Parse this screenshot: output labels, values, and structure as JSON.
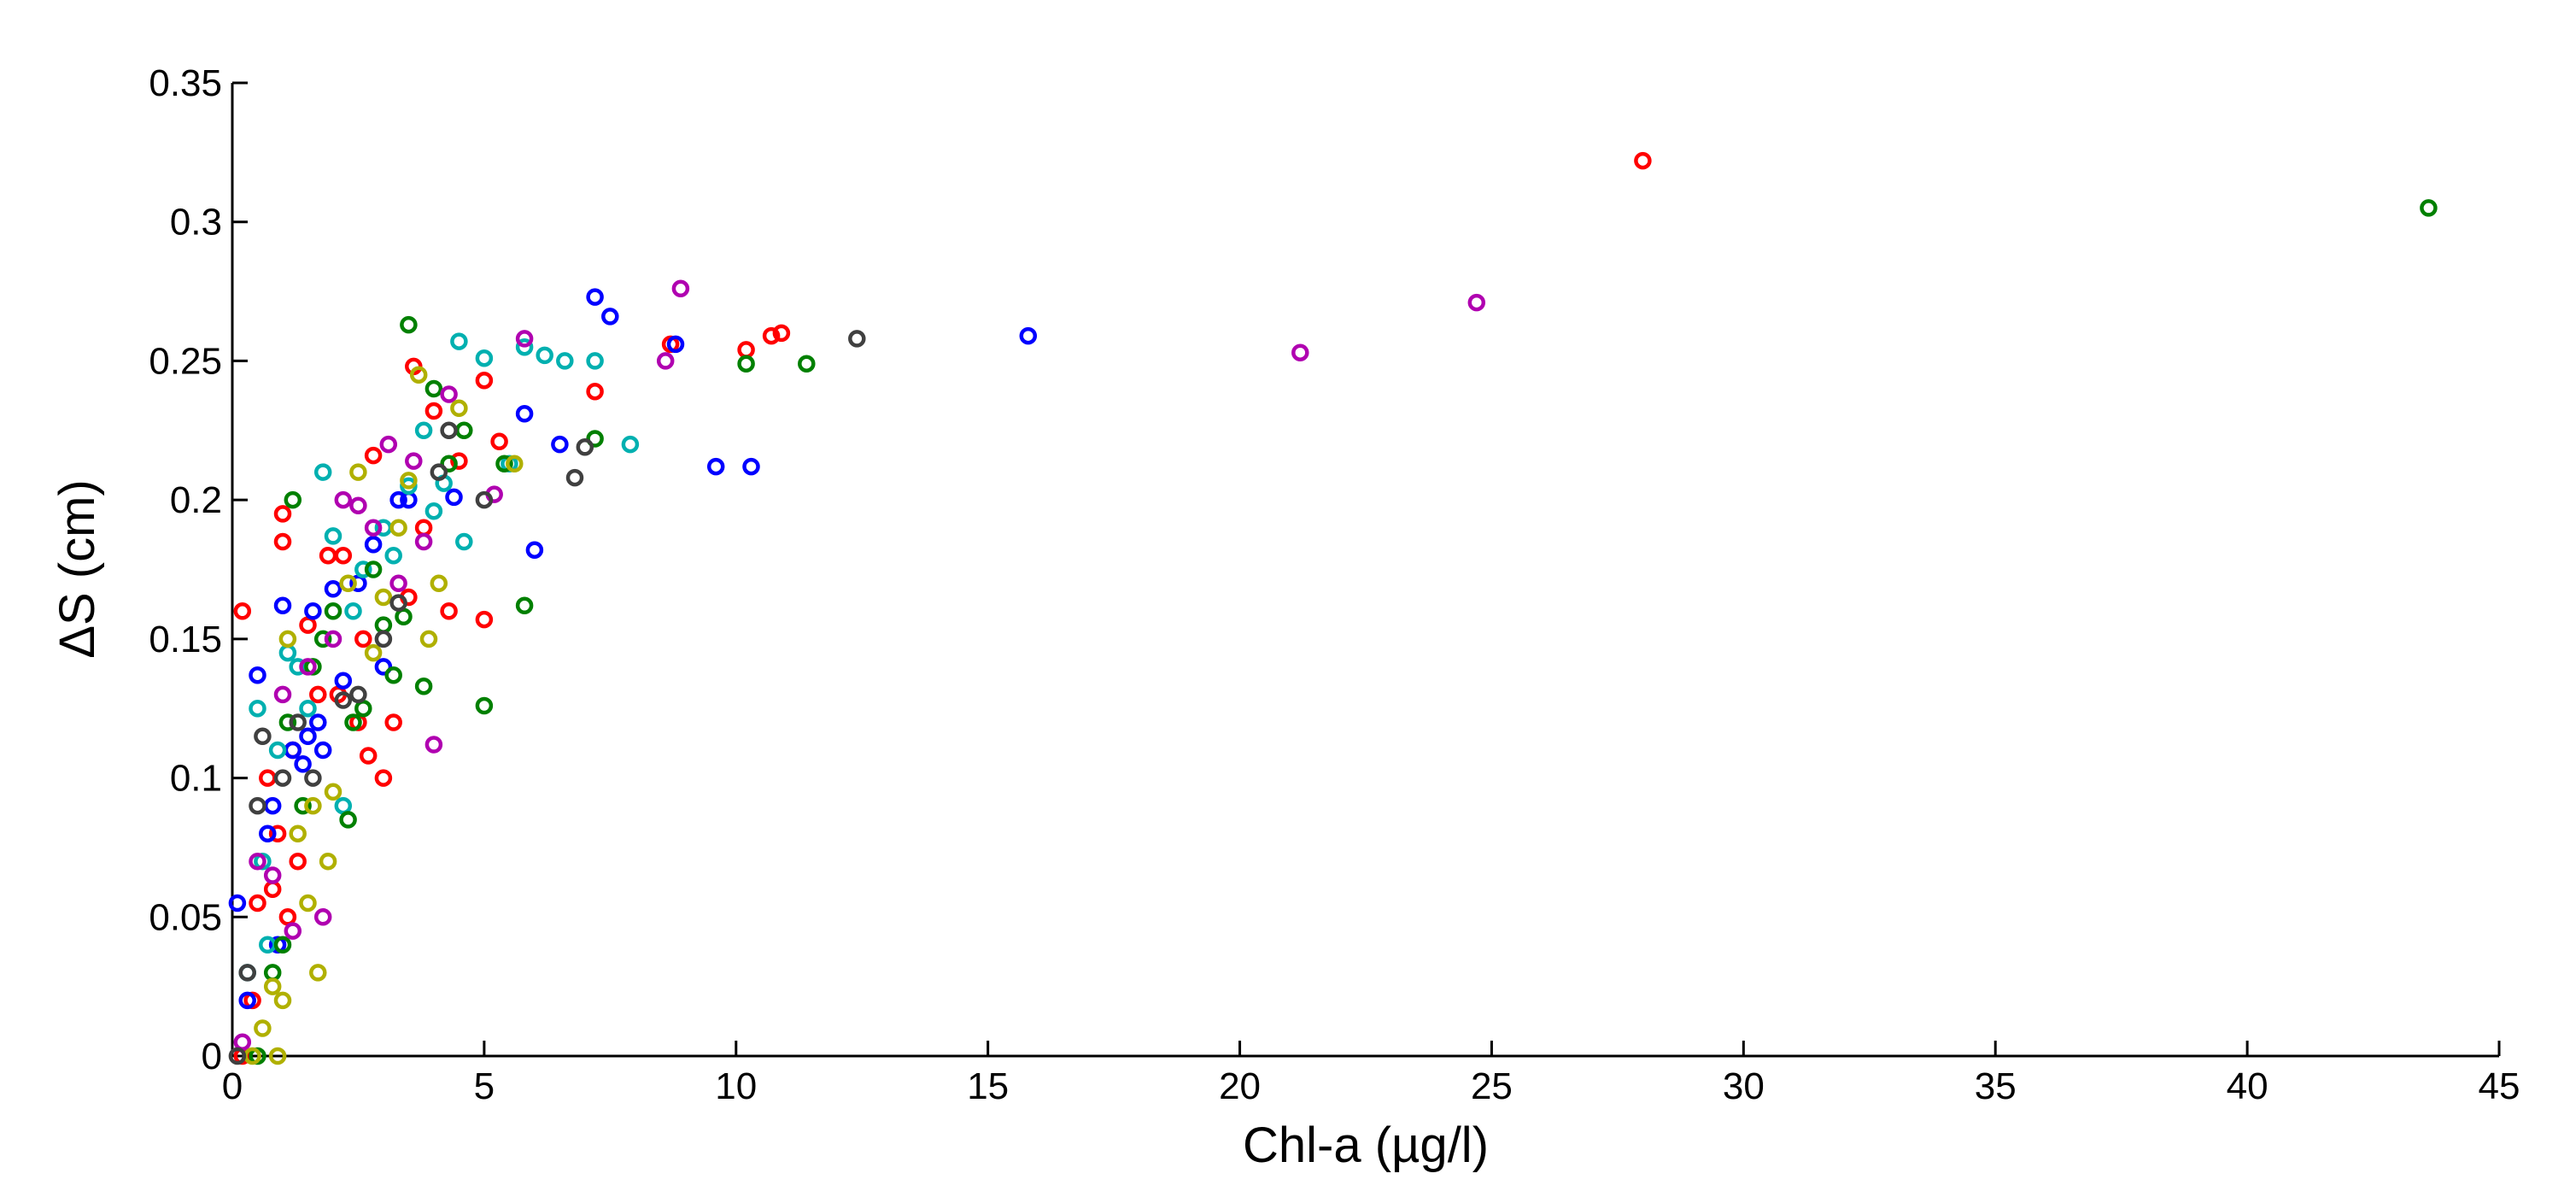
{
  "chart_data": {
    "type": "scatter",
    "title": "",
    "xlabel": "Chl-a (µg/l)",
    "ylabel": "ΔS (cm)",
    "xlim": [
      0,
      45
    ],
    "ylim": [
      0,
      0.35
    ],
    "xticks": [
      "0",
      "5",
      "10",
      "15",
      "20",
      "25",
      "30",
      "35",
      "40",
      "45"
    ],
    "yticks": [
      "0",
      "0.05",
      "0.1",
      "0.15",
      "0.2",
      "0.25",
      "0.3",
      "0.35"
    ],
    "grid": false,
    "legend": "none",
    "marker": "circle-open",
    "colors": [
      "#ff0000",
      "#0000ff",
      "#00b0b0",
      "#008000",
      "#b000b0",
      "#b0b000",
      "#404040"
    ],
    "series": [
      {
        "color": "#ff0000",
        "points": [
          [
            0.2,
            0.16
          ],
          [
            0.2,
            0.0
          ],
          [
            0.4,
            0.02
          ],
          [
            0.5,
            0.055
          ],
          [
            0.7,
            0.1
          ],
          [
            0.8,
            0.06
          ],
          [
            0.9,
            0.08
          ],
          [
            1.0,
            0.185
          ],
          [
            1.0,
            0.195
          ],
          [
            1.1,
            0.05
          ],
          [
            1.2,
            0.11
          ],
          [
            1.3,
            0.07
          ],
          [
            1.5,
            0.155
          ],
          [
            1.7,
            0.13
          ],
          [
            1.9,
            0.18
          ],
          [
            2.1,
            0.13
          ],
          [
            2.2,
            0.18
          ],
          [
            2.5,
            0.12
          ],
          [
            2.6,
            0.15
          ],
          [
            2.7,
            0.108
          ],
          [
            2.8,
            0.216
          ],
          [
            3.0,
            0.1
          ],
          [
            3.2,
            0.12
          ],
          [
            3.5,
            0.165
          ],
          [
            3.6,
            0.248
          ],
          [
            3.8,
            0.19
          ],
          [
            4.0,
            0.232
          ],
          [
            4.3,
            0.16
          ],
          [
            4.5,
            0.214
          ],
          [
            5.0,
            0.243
          ],
          [
            5.0,
            0.157
          ],
          [
            5.3,
            0.221
          ],
          [
            7.2,
            0.239
          ],
          [
            8.7,
            0.256
          ],
          [
            10.2,
            0.254
          ],
          [
            10.7,
            0.259
          ],
          [
            10.9,
            0.26
          ],
          [
            28.0,
            0.322
          ]
        ]
      },
      {
        "color": "#0000ff",
        "points": [
          [
            0.1,
            0.055
          ],
          [
            0.3,
            0.02
          ],
          [
            0.5,
            0.137
          ],
          [
            0.7,
            0.08
          ],
          [
            0.8,
            0.09
          ],
          [
            0.9,
            0.04
          ],
          [
            1.0,
            0.162
          ],
          [
            1.2,
            0.11
          ],
          [
            1.4,
            0.105
          ],
          [
            1.5,
            0.115
          ],
          [
            1.6,
            0.16
          ],
          [
            1.7,
            0.12
          ],
          [
            1.8,
            0.11
          ],
          [
            2.0,
            0.168
          ],
          [
            2.2,
            0.135
          ],
          [
            2.5,
            0.17
          ],
          [
            2.8,
            0.184
          ],
          [
            3.0,
            0.14
          ],
          [
            3.3,
            0.2
          ],
          [
            3.5,
            0.2
          ],
          [
            4.4,
            0.201
          ],
          [
            5.8,
            0.231
          ],
          [
            6.0,
            0.182
          ],
          [
            6.5,
            0.22
          ],
          [
            7.2,
            0.273
          ],
          [
            7.5,
            0.266
          ],
          [
            8.8,
            0.256
          ],
          [
            9.6,
            0.212
          ],
          [
            10.3,
            0.212
          ],
          [
            15.8,
            0.259
          ]
        ]
      },
      {
        "color": "#00b0b0",
        "points": [
          [
            0.3,
            0.03
          ],
          [
            0.5,
            0.125
          ],
          [
            0.6,
            0.07
          ],
          [
            0.7,
            0.04
          ],
          [
            0.9,
            0.11
          ],
          [
            1.1,
            0.145
          ],
          [
            1.3,
            0.14
          ],
          [
            1.5,
            0.125
          ],
          [
            1.8,
            0.21
          ],
          [
            2.0,
            0.187
          ],
          [
            2.2,
            0.09
          ],
          [
            2.4,
            0.16
          ],
          [
            2.6,
            0.175
          ],
          [
            3.0,
            0.19
          ],
          [
            3.2,
            0.18
          ],
          [
            3.5,
            0.205
          ],
          [
            3.8,
            0.225
          ],
          [
            4.0,
            0.196
          ],
          [
            4.2,
            0.206
          ],
          [
            4.5,
            0.257
          ],
          [
            4.6,
            0.185
          ],
          [
            5.0,
            0.251
          ],
          [
            5.5,
            0.213
          ],
          [
            5.8,
            0.255
          ],
          [
            6.2,
            0.252
          ],
          [
            6.6,
            0.25
          ],
          [
            7.2,
            0.25
          ],
          [
            7.9,
            0.22
          ]
        ]
      },
      {
        "color": "#008000",
        "points": [
          [
            0.5,
            0.0
          ],
          [
            0.8,
            0.03
          ],
          [
            1.0,
            0.04
          ],
          [
            1.1,
            0.12
          ],
          [
            1.2,
            0.2
          ],
          [
            1.4,
            0.09
          ],
          [
            1.6,
            0.14
          ],
          [
            1.8,
            0.15
          ],
          [
            2.0,
            0.16
          ],
          [
            2.3,
            0.085
          ],
          [
            2.4,
            0.12
          ],
          [
            2.6,
            0.125
          ],
          [
            2.8,
            0.175
          ],
          [
            3.0,
            0.155
          ],
          [
            3.2,
            0.137
          ],
          [
            3.4,
            0.158
          ],
          [
            3.5,
            0.263
          ],
          [
            3.8,
            0.133
          ],
          [
            4.0,
            0.24
          ],
          [
            4.3,
            0.213
          ],
          [
            4.6,
            0.225
          ],
          [
            5.0,
            0.126
          ],
          [
            5.4,
            0.213
          ],
          [
            5.8,
            0.162
          ],
          [
            7.2,
            0.222
          ],
          [
            10.2,
            0.249
          ],
          [
            11.4,
            0.249
          ],
          [
            43.6,
            0.305
          ]
        ]
      },
      {
        "color": "#b000b0",
        "points": [
          [
            0.2,
            0.005
          ],
          [
            0.5,
            0.07
          ],
          [
            0.8,
            0.065
          ],
          [
            1.0,
            0.13
          ],
          [
            1.2,
            0.045
          ],
          [
            1.5,
            0.14
          ],
          [
            1.8,
            0.05
          ],
          [
            2.0,
            0.15
          ],
          [
            2.2,
            0.2
          ],
          [
            2.5,
            0.198
          ],
          [
            2.8,
            0.19
          ],
          [
            3.1,
            0.22
          ],
          [
            3.3,
            0.17
          ],
          [
            3.6,
            0.214
          ],
          [
            3.8,
            0.185
          ],
          [
            4.0,
            0.112
          ],
          [
            4.3,
            0.238
          ],
          [
            5.2,
            0.202
          ],
          [
            5.8,
            0.258
          ],
          [
            8.6,
            0.25
          ],
          [
            8.9,
            0.276
          ],
          [
            21.2,
            0.253
          ],
          [
            24.7,
            0.271
          ]
        ]
      },
      {
        "color": "#b0b000",
        "points": [
          [
            0.4,
            0.0
          ],
          [
            0.6,
            0.01
          ],
          [
            0.8,
            0.025
          ],
          [
            0.9,
            0.0
          ],
          [
            1.0,
            0.02
          ],
          [
            1.1,
            0.15
          ],
          [
            1.3,
            0.08
          ],
          [
            1.5,
            0.055
          ],
          [
            1.6,
            0.09
          ],
          [
            1.7,
            0.03
          ],
          [
            1.9,
            0.07
          ],
          [
            2.0,
            0.095
          ],
          [
            2.3,
            0.17
          ],
          [
            2.5,
            0.21
          ],
          [
            2.8,
            0.145
          ],
          [
            3.0,
            0.165
          ],
          [
            3.3,
            0.19
          ],
          [
            3.5,
            0.207
          ],
          [
            3.7,
            0.245
          ],
          [
            3.9,
            0.15
          ],
          [
            4.1,
            0.17
          ],
          [
            4.5,
            0.233
          ],
          [
            5.6,
            0.213
          ]
        ]
      },
      {
        "color": "#404040",
        "points": [
          [
            0.1,
            0.0
          ],
          [
            0.3,
            0.03
          ],
          [
            0.5,
            0.09
          ],
          [
            0.6,
            0.115
          ],
          [
            1.0,
            0.1
          ],
          [
            1.3,
            0.12
          ],
          [
            1.6,
            0.1
          ],
          [
            2.2,
            0.128
          ],
          [
            2.5,
            0.13
          ],
          [
            3.0,
            0.15
          ],
          [
            3.3,
            0.163
          ],
          [
            4.1,
            0.21
          ],
          [
            4.3,
            0.225
          ],
          [
            5.0,
            0.2
          ],
          [
            6.8,
            0.208
          ],
          [
            7.0,
            0.219
          ],
          [
            12.4,
            0.258
          ]
        ]
      }
    ]
  }
}
